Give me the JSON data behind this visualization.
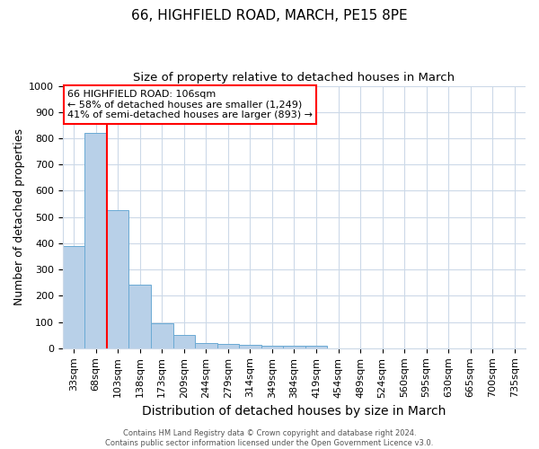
{
  "title1": "66, HIGHFIELD ROAD, MARCH, PE15 8PE",
  "title2": "Size of property relative to detached houses in March",
  "xlabel": "Distribution of detached houses by size in March",
  "ylabel": "Number of detached properties",
  "categories": [
    "33sqm",
    "68sqm",
    "103sqm",
    "138sqm",
    "173sqm",
    "209sqm",
    "244sqm",
    "279sqm",
    "314sqm",
    "349sqm",
    "384sqm",
    "419sqm",
    "454sqm",
    "489sqm",
    "524sqm",
    "560sqm",
    "595sqm",
    "630sqm",
    "665sqm",
    "700sqm",
    "735sqm"
  ],
  "values": [
    390,
    820,
    525,
    243,
    95,
    50,
    20,
    15,
    12,
    8,
    8,
    8,
    0,
    0,
    0,
    0,
    0,
    0,
    0,
    0,
    0
  ],
  "bar_color": "#b8d0e8",
  "bar_edge_color": "#6aaad4",
  "red_line_index": 2,
  "annotation_text": "66 HIGHFIELD ROAD: 106sqm\n← 58% of detached houses are smaller (1,249)\n41% of semi-detached houses are larger (893) →",
  "annotation_box_color": "white",
  "annotation_box_edge": "red",
  "ylim": [
    0,
    1000
  ],
  "yticks": [
    0,
    100,
    200,
    300,
    400,
    500,
    600,
    700,
    800,
    900,
    1000
  ],
  "footer1": "Contains HM Land Registry data © Crown copyright and database right 2024.",
  "footer2": "Contains public sector information licensed under the Open Government Licence v3.0.",
  "bg_color": "#ffffff",
  "grid_color": "#ccd9e8",
  "title1_fontsize": 11,
  "title2_fontsize": 9.5,
  "xlabel_fontsize": 10,
  "ylabel_fontsize": 9,
  "tick_fontsize": 8,
  "footer_fontsize": 6,
  "annotation_fontsize": 8
}
